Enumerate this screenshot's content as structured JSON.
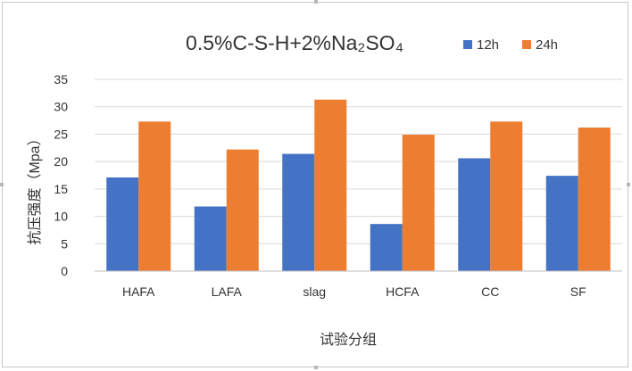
{
  "chart_data": {
    "type": "bar",
    "title": "0.5%C-S-H+2%Na₂SO₄",
    "xlabel": "试验分组",
    "ylabel": "抗压强度（Mpa）",
    "ylim": [
      0,
      35
    ],
    "yticks": [
      0,
      5,
      10,
      15,
      20,
      25,
      30,
      35
    ],
    "grid": true,
    "legend_position": "top-right",
    "categories": [
      "HAFA",
      "LAFA",
      "slag",
      "HCFA",
      "CC",
      "SF"
    ],
    "series": [
      {
        "name": "12h",
        "color": "#4472C4",
        "values": [
          17.1,
          11.8,
          21.4,
          8.6,
          20.6,
          17.4
        ]
      },
      {
        "name": "24h",
        "color": "#ED7D31",
        "values": [
          27.3,
          22.2,
          31.3,
          24.9,
          27.3,
          26.2
        ]
      }
    ],
    "colors": {
      "grid": "#d9d9d9",
      "axis": "#bfbfbf",
      "text": "#333333"
    }
  }
}
